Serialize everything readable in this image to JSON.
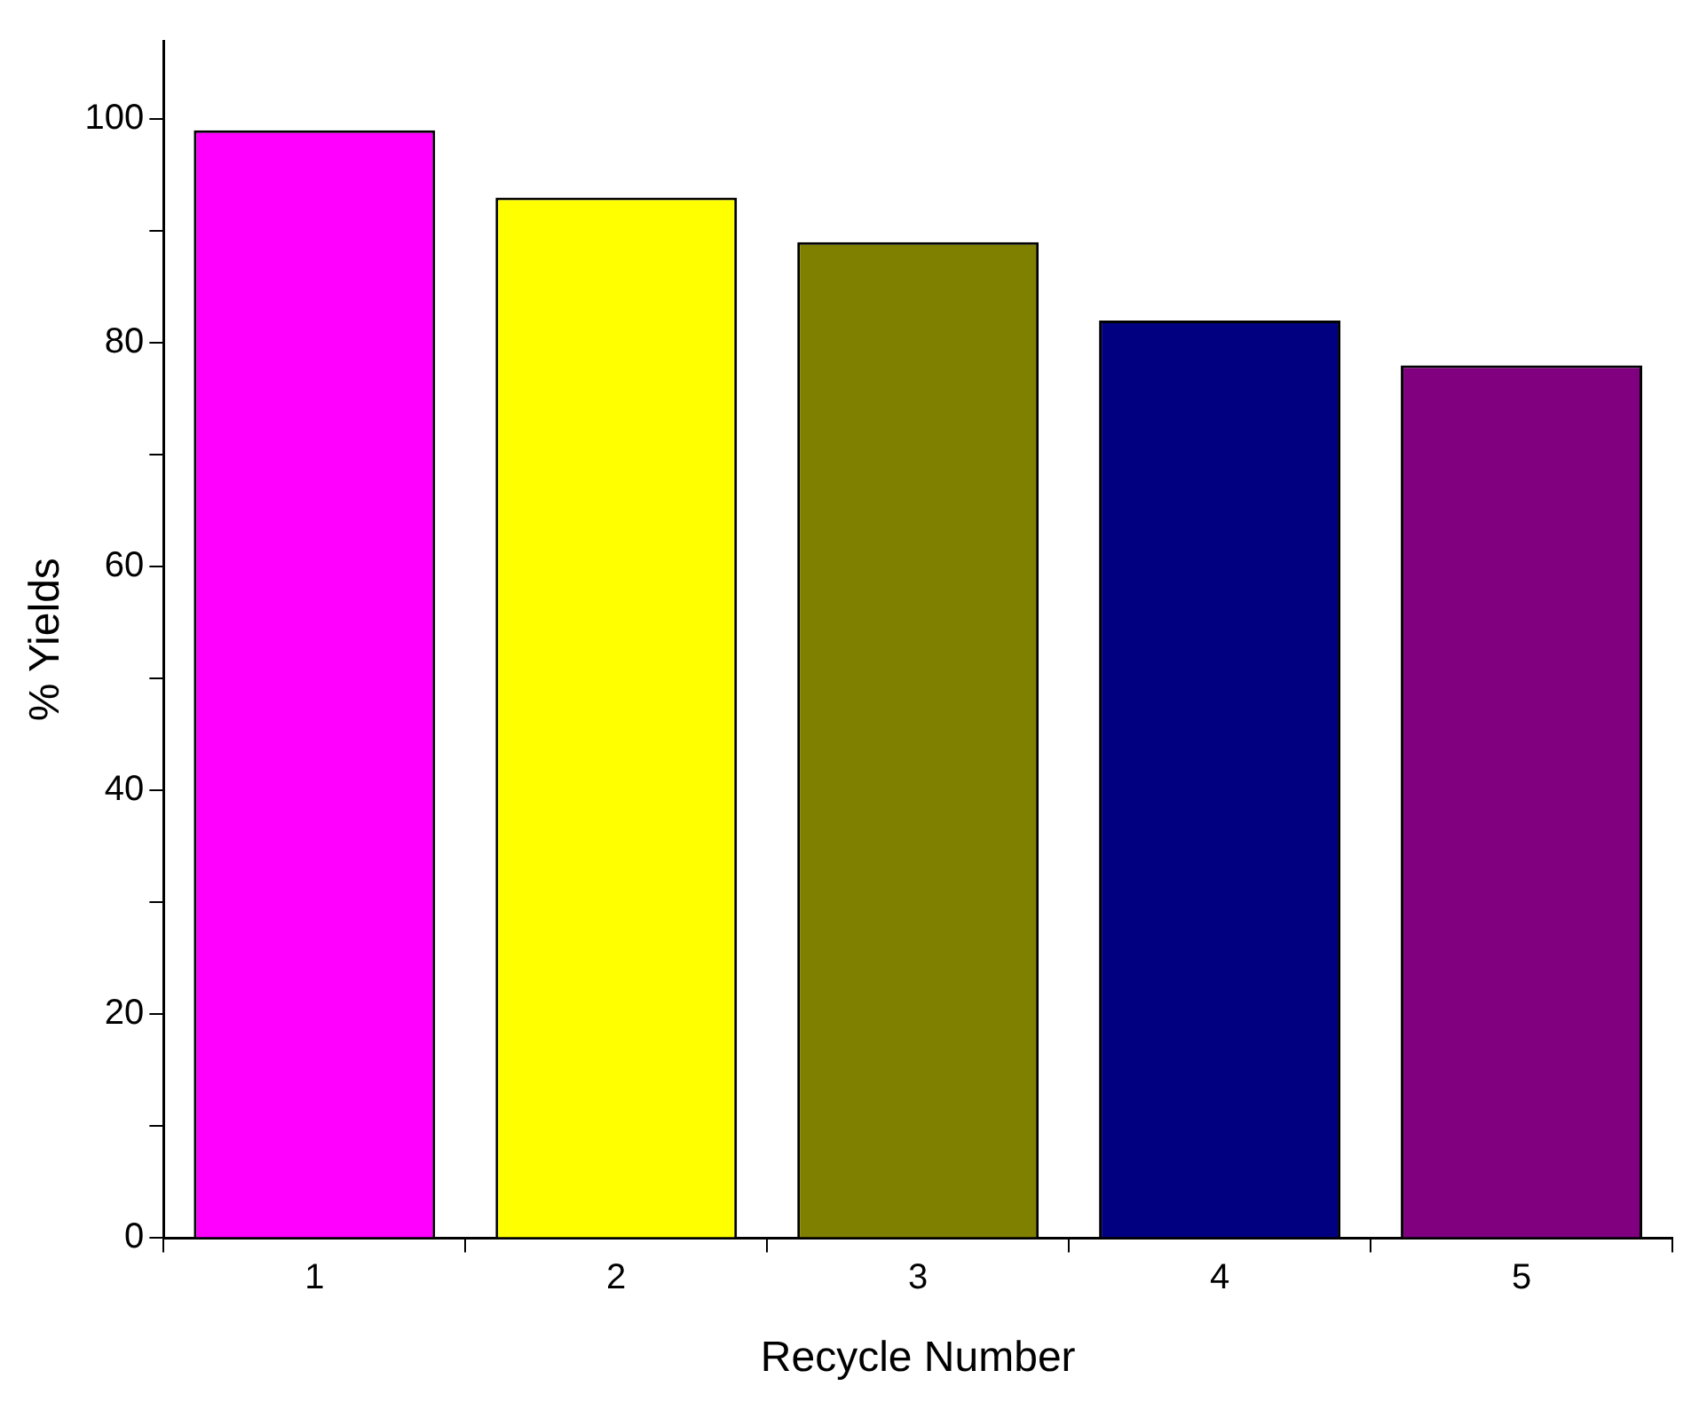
{
  "chart_data": {
    "type": "bar",
    "xlabel": "Recycle Number",
    "ylabel": "% Yields",
    "categories": [
      "1",
      "2",
      "3",
      "4",
      "5"
    ],
    "values": [
      99,
      93,
      89,
      82,
      78
    ],
    "colors": [
      "#ff00ff",
      "#ffff00",
      "#808000",
      "#000080",
      "#800080"
    ],
    "ylim": [
      0,
      107
    ],
    "yticks": [
      0,
      {
        "value": 10,
        "label": null
      },
      20,
      {
        "value": 30,
        "label": null
      },
      40,
      {
        "value": 50,
        "label": null
      },
      60,
      {
        "value": 70,
        "label": null
      },
      80,
      {
        "value": 90,
        "label": null
      },
      100
    ],
    "grid": false,
    "legend": false
  }
}
